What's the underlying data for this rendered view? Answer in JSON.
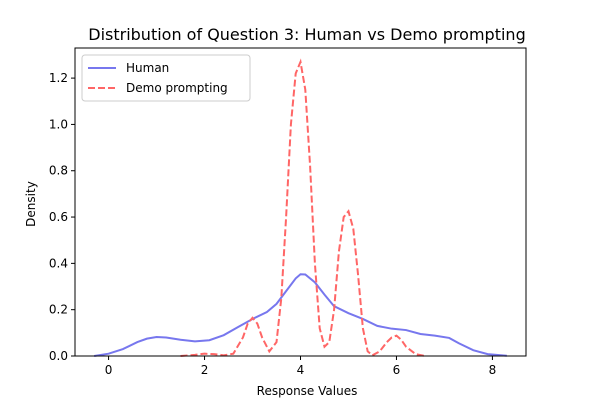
{
  "chart_data": {
    "type": "line",
    "title": "Distribution of Question 3: Human vs Demo prompting",
    "xlabel": "Response Values",
    "ylabel": "Density",
    "xlim": [
      -0.7,
      8.7
    ],
    "ylim": [
      0,
      1.33
    ],
    "xticks": [
      0,
      2,
      4,
      6,
      8
    ],
    "yticks": [
      0.0,
      0.2,
      0.4,
      0.6,
      0.8,
      1.0,
      1.2
    ],
    "xtick_labels": [
      "0",
      "2",
      "4",
      "6",
      "8"
    ],
    "ytick_labels": [
      "0.0",
      "0.2",
      "0.4",
      "0.6",
      "0.8",
      "1.0",
      "1.2"
    ],
    "grid": false,
    "legend_position": "top-left",
    "series": [
      {
        "name": "Human",
        "color": "#7777ee",
        "style": "solid",
        "x": [
          -0.3,
          0.0,
          0.3,
          0.6,
          0.8,
          1.0,
          1.2,
          1.5,
          1.8,
          2.1,
          2.4,
          2.7,
          3.0,
          3.3,
          3.5,
          3.7,
          3.9,
          4.0,
          4.1,
          4.3,
          4.5,
          4.7,
          5.0,
          5.3,
          5.6,
          5.9,
          6.2,
          6.5,
          6.8,
          7.1,
          7.3,
          7.6,
          7.9,
          8.3
        ],
        "y": [
          0.0,
          0.01,
          0.03,
          0.06,
          0.075,
          0.082,
          0.08,
          0.07,
          0.063,
          0.068,
          0.09,
          0.125,
          0.16,
          0.19,
          0.225,
          0.28,
          0.335,
          0.353,
          0.352,
          0.318,
          0.265,
          0.215,
          0.185,
          0.16,
          0.13,
          0.118,
          0.112,
          0.095,
          0.088,
          0.078,
          0.055,
          0.025,
          0.008,
          0.001
        ]
      },
      {
        "name": "Demo prompting",
        "color": "#ff6666",
        "style": "dashed",
        "x": [
          1.5,
          1.8,
          2.0,
          2.2,
          2.4,
          2.6,
          2.8,
          2.9,
          3.0,
          3.1,
          3.2,
          3.35,
          3.5,
          3.6,
          3.7,
          3.8,
          3.9,
          4.0,
          4.1,
          4.2,
          4.3,
          4.4,
          4.5,
          4.6,
          4.7,
          4.8,
          4.9,
          5.0,
          5.1,
          5.2,
          5.3,
          5.4,
          5.5,
          5.65,
          5.8,
          5.9,
          6.0,
          6.1,
          6.2,
          6.4,
          6.6
        ],
        "y": [
          0.0,
          0.005,
          0.01,
          0.008,
          0.003,
          0.01,
          0.08,
          0.14,
          0.165,
          0.14,
          0.08,
          0.02,
          0.06,
          0.25,
          0.6,
          1.0,
          1.22,
          1.27,
          1.15,
          0.82,
          0.4,
          0.12,
          0.04,
          0.06,
          0.2,
          0.45,
          0.6,
          0.625,
          0.55,
          0.35,
          0.12,
          0.02,
          0.003,
          0.02,
          0.06,
          0.08,
          0.088,
          0.07,
          0.04,
          0.008,
          0.0
        ]
      }
    ]
  }
}
